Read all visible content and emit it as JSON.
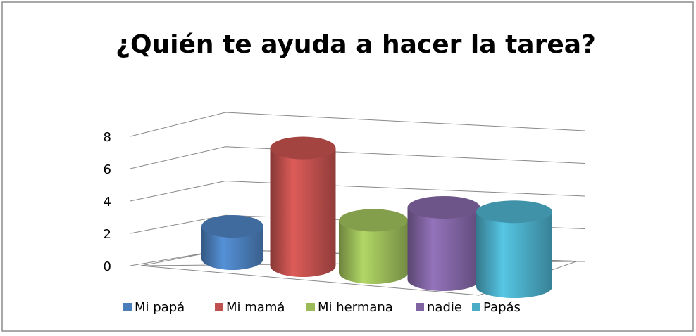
{
  "chart_data": {
    "type": "cylinder3d",
    "title": "¿Quién te ayuda a hacer la tarea?",
    "categories": [
      "Mi papá",
      "Mi mamá",
      "Mi hermana",
      "nadie",
      "Papás"
    ],
    "values": [
      2,
      7,
      3,
      4,
      4
    ],
    "colors": [
      "#4a7ebb",
      "#c0504d",
      "#9bbb59",
      "#8064a2",
      "#4bacc6"
    ],
    "ylim": [
      0,
      8
    ],
    "yticks": [
      0,
      2,
      4,
      6,
      8
    ],
    "grid": true,
    "legend": "bottom"
  }
}
